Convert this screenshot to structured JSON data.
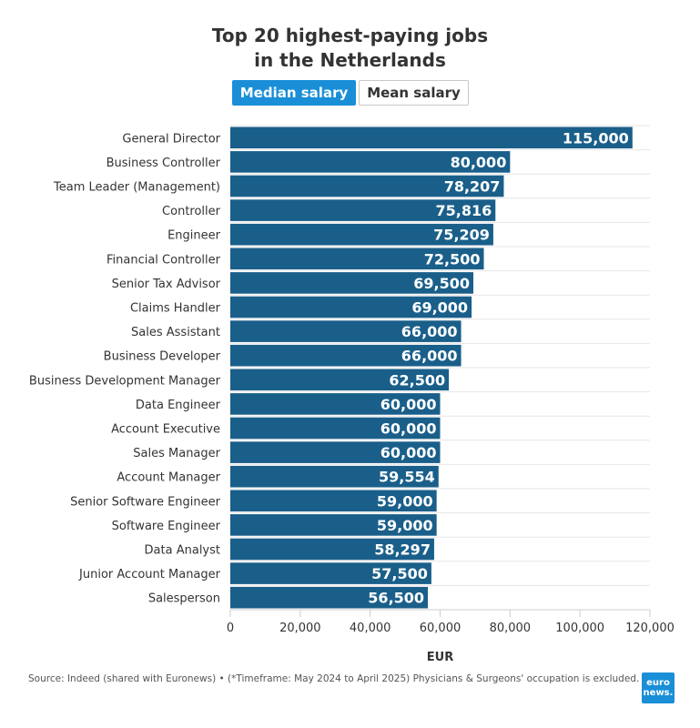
{
  "header": {
    "title_line1": "Top 20 highest-paying jobs",
    "title_line2": "in the Netherlands"
  },
  "toggles": {
    "median_label": "Median salary",
    "mean_label": "Mean salary",
    "selected": "Median salary"
  },
  "colors": {
    "bar": "#1a5f8a",
    "accent": "#1a8fd8"
  },
  "chart_data": {
    "type": "bar",
    "orientation": "horizontal",
    "title": "Top 20 highest-paying jobs in the Netherlands",
    "xlabel": "EUR",
    "ylabel": "",
    "xlim": [
      0,
      120000
    ],
    "xticks": [
      0,
      20000,
      40000,
      60000,
      80000,
      100000,
      120000
    ],
    "xtick_labels": [
      "0",
      "20,000",
      "40,000",
      "60,000",
      "80,000",
      "100,000",
      "120,000"
    ],
    "grid": true,
    "categories": [
      "General Director",
      "Business Controller",
      "Team Leader (Management)",
      "Controller",
      "Engineer",
      "Financial Controller",
      "Senior Tax Advisor",
      "Claims Handler",
      "Sales Assistant",
      "Business Developer",
      "Business Development Manager",
      "Data Engineer",
      "Account Executive",
      "Sales Manager",
      "Account Manager",
      "Senior Software Engineer",
      "Software Engineer",
      "Data Analyst",
      "Junior Account Manager",
      "Salesperson"
    ],
    "values": [
      115000,
      80000,
      78207,
      75816,
      75209,
      72500,
      69500,
      69000,
      66000,
      66000,
      62500,
      60000,
      60000,
      60000,
      59554,
      59000,
      59000,
      58297,
      57500,
      56500
    ],
    "value_labels": [
      "115,000",
      "80,000",
      "78,207",
      "75,816",
      "75,209",
      "72,500",
      "69,500",
      "69,000",
      "66,000",
      "66,000",
      "62,500",
      "60,000",
      "60,000",
      "60,000",
      "59,554",
      "59,000",
      "59,000",
      "58,297",
      "57,500",
      "56,500"
    ]
  },
  "footer": {
    "source": "Source: Indeed (shared with Euronews) • (*Timeframe: May 2024 to April 2025) Physicians & Surgeons' occupation is excluded.",
    "logo_line1": "euro",
    "logo_line2": "news."
  }
}
